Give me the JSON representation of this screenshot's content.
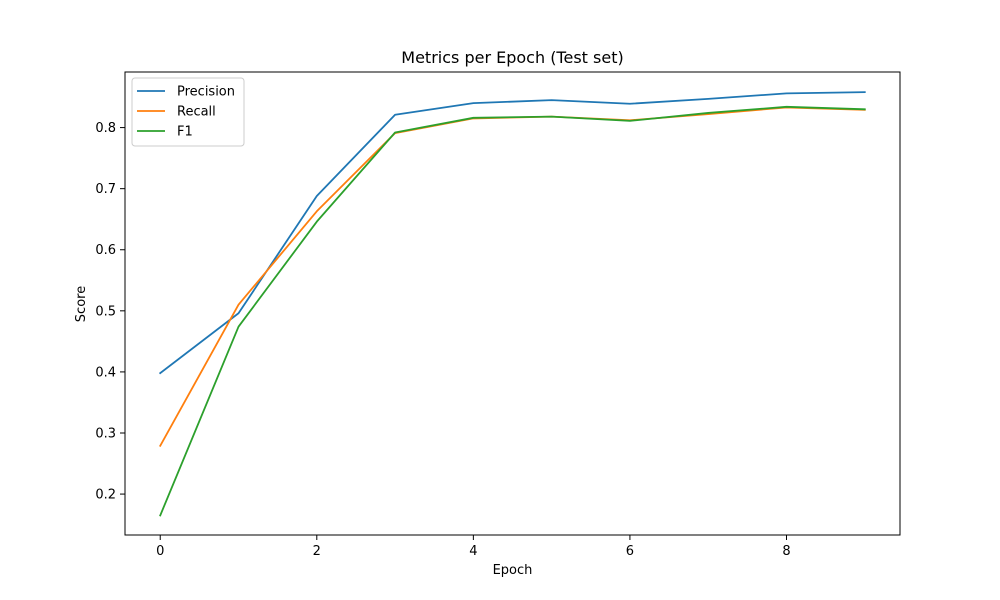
{
  "chart_data": {
    "type": "line",
    "title": "Metrics per Epoch (Test set)",
    "xlabel": "Epoch",
    "ylabel": "Score",
    "x": [
      0,
      1,
      2,
      3,
      4,
      5,
      6,
      7,
      8,
      9
    ],
    "xlim": [
      -0.45,
      9.45
    ],
    "ylim": [
      0.133,
      0.891
    ],
    "x_ticks": [
      0,
      2,
      4,
      6,
      8
    ],
    "y_ticks": [
      0.2,
      0.3,
      0.4,
      0.5,
      0.6,
      0.7,
      0.8
    ],
    "x_tick_labels": [
      "0",
      "2",
      "4",
      "6",
      "8"
    ],
    "y_tick_labels": [
      "0.2",
      "0.3",
      "0.4",
      "0.5",
      "0.6",
      "0.7",
      "0.8"
    ],
    "grid": false,
    "legend_position": "upper-left",
    "series": [
      {
        "name": "Precision",
        "color": "#1f77b4",
        "values": [
          0.398,
          0.496,
          0.688,
          0.821,
          0.84,
          0.845,
          0.839,
          0.847,
          0.856,
          0.858
        ]
      },
      {
        "name": "Recall",
        "color": "#ff7f0e",
        "values": [
          0.279,
          0.51,
          0.663,
          0.791,
          0.815,
          0.818,
          0.812,
          0.822,
          0.833,
          0.829
        ]
      },
      {
        "name": "F1",
        "color": "#2ca02c",
        "values": [
          0.165,
          0.474,
          0.646,
          0.792,
          0.816,
          0.818,
          0.811,
          0.824,
          0.834,
          0.83
        ]
      }
    ]
  }
}
